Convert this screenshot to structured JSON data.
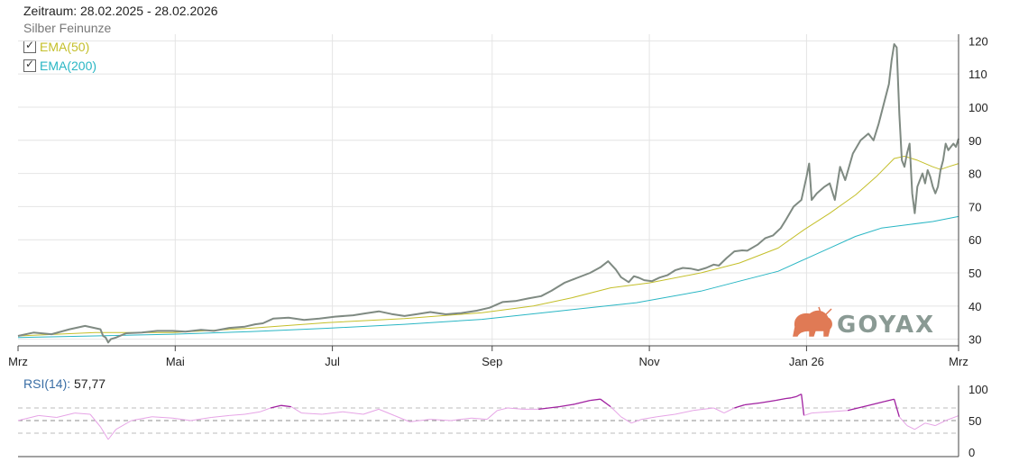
{
  "header": {
    "period": "Zeitraum: 28.02.2025 - 28.02.2026",
    "instrument": "Silber Feinunze"
  },
  "legend": [
    {
      "label": "EMA(50)",
      "color": "#c4bf2a",
      "checked": true
    },
    {
      "label": "EMA(200)",
      "color": "#29b6c4",
      "checked": true
    }
  ],
  "logo": {
    "text": "GOYAX",
    "icon": "bull-icon",
    "color": "#e07a55",
    "text_color": "#8a9a94"
  },
  "rsi": {
    "name": "RSI(14)",
    "value_text": "57,77"
  },
  "chart_data": [
    {
      "type": "line",
      "title": "",
      "xlabel": "",
      "ylabel": "",
      "xlim": [
        0,
        365
      ],
      "ylim": [
        28,
        122
      ],
      "y_ticks": [
        30,
        40,
        50,
        60,
        70,
        80,
        90,
        100,
        110,
        120
      ],
      "x_ticks": [
        {
          "label": "Mrz",
          "day": 0
        },
        {
          "label": "Mai",
          "day": 61
        },
        {
          "label": "Jul",
          "day": 122
        },
        {
          "label": "Sep",
          "day": 184
        },
        {
          "label": "Nov",
          "day": 245
        },
        {
          "label": "Jan 26",
          "day": 306
        },
        {
          "label": "Mrz",
          "day": 365
        }
      ],
      "grid": true,
      "series": [
        {
          "name": "",
          "color": "#7f8a82",
          "points": [
            [
              0,
              31
            ],
            [
              6,
              32
            ],
            [
              13,
              31.5
            ],
            [
              20,
              33
            ],
            [
              26,
              34
            ],
            [
              32,
              33
            ],
            [
              33,
              31
            ],
            [
              34,
              30.5
            ],
            [
              35,
              29
            ],
            [
              36,
              30
            ],
            [
              38,
              30.5
            ],
            [
              42,
              31.8
            ],
            [
              48,
              32
            ],
            [
              54,
              32.5
            ],
            [
              60,
              32.5
            ],
            [
              65,
              32.3
            ],
            [
              71,
              32.8
            ],
            [
              76,
              32.5
            ],
            [
              82,
              33.4
            ],
            [
              88,
              33.8
            ],
            [
              92,
              34.5
            ],
            [
              95,
              34.8
            ],
            [
              99,
              36.2
            ],
            [
              105,
              36.5
            ],
            [
              111,
              35.8
            ],
            [
              117,
              36.2
            ],
            [
              123,
              36.8
            ],
            [
              130,
              37.2
            ],
            [
              135,
              37.8
            ],
            [
              140,
              38.4
            ],
            [
              145,
              37.6
            ],
            [
              150,
              37
            ],
            [
              155,
              37.6
            ],
            [
              160,
              38.2
            ],
            [
              166,
              37.5
            ],
            [
              172,
              37.9
            ],
            [
              178,
              38.6
            ],
            [
              183,
              39.5
            ],
            [
              188,
              41.2
            ],
            [
              193,
              41.5
            ],
            [
              198,
              42.3
            ],
            [
              203,
              43
            ],
            [
              207,
              44.6
            ],
            [
              212,
              47
            ],
            [
              217,
              48.5
            ],
            [
              222,
              50
            ],
            [
              226,
              51.7
            ],
            [
              229,
              53.5
            ],
            [
              232,
              51
            ],
            [
              234,
              48.7
            ],
            [
              237,
              47.2
            ],
            [
              239,
              49
            ],
            [
              241,
              48.5
            ],
            [
              243,
              47.8
            ],
            [
              246,
              47.5
            ],
            [
              249,
              48.6
            ],
            [
              252,
              49.3
            ],
            [
              255,
              50.8
            ],
            [
              258,
              51.5
            ],
            [
              261,
              51.3
            ],
            [
              264,
              50.8
            ],
            [
              267,
              51.5
            ],
            [
              270,
              52.5
            ],
            [
              272,
              52.2
            ],
            [
              275,
              54.5
            ],
            [
              278,
              56.5
            ],
            [
              281,
              56.8
            ],
            [
              283,
              56.7
            ],
            [
              287,
              58.5
            ],
            [
              290,
              60.5
            ],
            [
              293,
              61.3
            ],
            [
              296,
              63.5
            ],
            [
              298,
              66
            ],
            [
              301,
              70
            ],
            [
              304,
              72
            ],
            [
              306,
              79
            ],
            [
              307,
              83
            ],
            [
              308,
              72
            ],
            [
              310,
              74
            ],
            [
              313,
              76
            ],
            [
              315,
              77
            ],
            [
              317,
              72
            ],
            [
              319,
              82
            ],
            [
              321,
              78
            ],
            [
              324,
              86
            ],
            [
              327,
              90
            ],
            [
              330,
              92
            ],
            [
              332,
              90
            ],
            [
              334,
              95
            ],
            [
              336,
              101
            ],
            [
              338,
              107
            ],
            [
              339,
              114
            ],
            [
              340,
              119
            ],
            [
              341,
              118
            ],
            [
              342,
              98
            ],
            [
              343,
              84
            ],
            [
              344,
              82
            ],
            [
              345,
              86
            ],
            [
              346,
              89
            ],
            [
              347,
              74
            ],
            [
              348,
              68
            ],
            [
              349,
              76
            ],
            [
              350,
              78
            ],
            [
              351,
              80
            ],
            [
              352,
              77
            ],
            [
              353,
              81
            ],
            [
              354,
              79
            ],
            [
              355,
              76
            ],
            [
              356,
              74
            ],
            [
              357,
              76
            ],
            [
              358,
              81
            ],
            [
              359,
              84
            ],
            [
              360,
              89
            ],
            [
              361,
              87
            ],
            [
              362,
              88
            ],
            [
              363,
              89
            ],
            [
              364,
              88
            ],
            [
              365,
              90.5
            ]
          ]
        },
        {
          "name": "EMA(50)",
          "color": "#c4bf2a",
          "points": [
            [
              0,
              31
            ],
            [
              30,
              32
            ],
            [
              60,
              32
            ],
            [
              90,
              33.3
            ],
            [
              120,
              35
            ],
            [
              150,
              36.2
            ],
            [
              180,
              38
            ],
            [
              200,
              40
            ],
            [
              215,
              42.5
            ],
            [
              230,
              45.5
            ],
            [
              245,
              47
            ],
            [
              265,
              50
            ],
            [
              280,
              53
            ],
            [
              295,
              57.5
            ],
            [
              305,
              63
            ],
            [
              315,
              68
            ],
            [
              325,
              73.5
            ],
            [
              333,
              79
            ],
            [
              340,
              84.5
            ],
            [
              344,
              85.2
            ],
            [
              349,
              84
            ],
            [
              355,
              82
            ],
            [
              358,
              81.2
            ],
            [
              361,
              82
            ],
            [
              365,
              83
            ]
          ]
        },
        {
          "name": "EMA(200)",
          "color": "#29b6c4",
          "points": [
            [
              0,
              30.5
            ],
            [
              30,
              31
            ],
            [
              60,
              31.5
            ],
            [
              90,
              32.3
            ],
            [
              120,
              33.3
            ],
            [
              150,
              34.5
            ],
            [
              180,
              36
            ],
            [
              210,
              38.5
            ],
            [
              240,
              41
            ],
            [
              265,
              44.5
            ],
            [
              280,
              47.5
            ],
            [
              295,
              50.5
            ],
            [
              305,
              54
            ],
            [
              315,
              57.5
            ],
            [
              325,
              61
            ],
            [
              335,
              63.5
            ],
            [
              345,
              64.5
            ],
            [
              355,
              65.5
            ],
            [
              365,
              67
            ]
          ]
        }
      ]
    },
    {
      "type": "line",
      "title": "RSI(14)",
      "ylim": [
        0,
        100
      ],
      "y_ticks": [
        0,
        50,
        100
      ],
      "ref_lines": [
        30,
        50,
        70
      ],
      "grid": false,
      "series": [
        {
          "name": "RSI(14)",
          "color_overbought": "#a020a0",
          "color_normal": "#e6a4e6",
          "points": [
            [
              0,
              50
            ],
            [
              8,
              58
            ],
            [
              15,
              55
            ],
            [
              22,
              62
            ],
            [
              28,
              60
            ],
            [
              32,
              40
            ],
            [
              35,
              20
            ],
            [
              38,
              36
            ],
            [
              44,
              50
            ],
            [
              52,
              56
            ],
            [
              60,
              54
            ],
            [
              67,
              50
            ],
            [
              75,
              55
            ],
            [
              82,
              58
            ],
            [
              88,
              60
            ],
            [
              94,
              64
            ],
            [
              98,
              70
            ],
            [
              102,
              74
            ],
            [
              106,
              72
            ],
            [
              110,
              62
            ],
            [
              118,
              60
            ],
            [
              126,
              64
            ],
            [
              134,
              60
            ],
            [
              140,
              68
            ],
            [
              146,
              58
            ],
            [
              152,
              48
            ],
            [
              160,
              52
            ],
            [
              168,
              50
            ],
            [
              176,
              54
            ],
            [
              182,
              52
            ],
            [
              186,
              66
            ],
            [
              190,
              70
            ],
            [
              196,
              68
            ],
            [
              202,
              68
            ],
            [
              210,
              72
            ],
            [
              216,
              76
            ],
            [
              222,
              82
            ],
            [
              226,
              84
            ],
            [
              230,
              72
            ],
            [
              234,
              56
            ],
            [
              238,
              46
            ],
            [
              242,
              52
            ],
            [
              248,
              56
            ],
            [
              255,
              60
            ],
            [
              262,
              66
            ],
            [
              266,
              68
            ],
            [
              270,
              70
            ],
            [
              274,
              62
            ],
            [
              278,
              70
            ],
            [
              282,
              75
            ],
            [
              288,
              78
            ],
            [
              294,
              82
            ],
            [
              298,
              85
            ],
            [
              300,
              86
            ],
            [
              302,
              88
            ],
            [
              304,
              92
            ],
            [
              305,
              58
            ],
            [
              308,
              62
            ],
            [
              315,
              64
            ],
            [
              322,
              66
            ],
            [
              330,
              74
            ],
            [
              336,
              80
            ],
            [
              340,
              84
            ],
            [
              342,
              56
            ],
            [
              345,
              42
            ],
            [
              348,
              36
            ],
            [
              352,
              46
            ],
            [
              356,
              42
            ],
            [
              360,
              50
            ],
            [
              365,
              57.77
            ]
          ]
        }
      ]
    }
  ]
}
